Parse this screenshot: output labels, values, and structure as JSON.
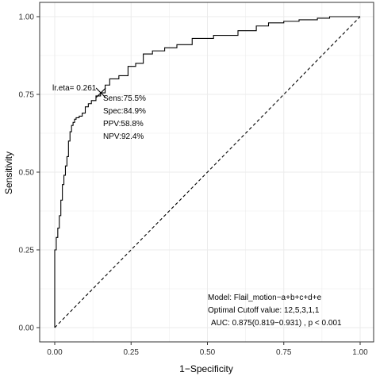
{
  "chart_data": {
    "type": "line",
    "xlabel": "1−Specificity",
    "ylabel": "Sensitivity",
    "xlim": [
      0,
      1
    ],
    "ylim": [
      0,
      1
    ],
    "x_ticks": [
      "0.00",
      "0.25",
      "0.50",
      "0.75",
      "1.00"
    ],
    "y_ticks": [
      "0.00",
      "0.25",
      "0.50",
      "0.75",
      "1.00"
    ],
    "grid": true,
    "series": [
      {
        "style": "solid",
        "x": [
          0,
          0,
          0.005,
          0.005,
          0.01,
          0.01,
          0.015,
          0.015,
          0.02,
          0.02,
          0.025,
          0.025,
          0.03,
          0.03,
          0.035,
          0.035,
          0.04,
          0.04,
          0.045,
          0.045,
          0.05,
          0.05,
          0.055,
          0.055,
          0.06,
          0.06,
          0.065,
          0.065,
          0.07,
          0.07,
          0.08,
          0.08,
          0.09,
          0.09,
          0.1,
          0.1,
          0.11,
          0.11,
          0.12,
          0.12,
          0.135,
          0.135,
          0.15,
          0.15,
          0.165,
          0.165,
          0.18,
          0.18,
          0.21,
          0.21,
          0.24,
          0.24,
          0.265,
          0.265,
          0.29,
          0.29,
          0.32,
          0.32,
          0.36,
          0.36,
          0.4,
          0.4,
          0.45,
          0.45,
          0.52,
          0.52,
          0.6,
          0.6,
          0.66,
          0.66,
          0.7,
          0.7,
          0.75,
          0.75,
          0.8,
          0.8,
          0.86,
          0.86,
          0.9,
          0.9,
          1.0
        ],
        "y": [
          0,
          0.25,
          0.25,
          0.29,
          0.29,
          0.32,
          0.32,
          0.36,
          0.36,
          0.41,
          0.41,
          0.46,
          0.46,
          0.49,
          0.49,
          0.52,
          0.52,
          0.55,
          0.55,
          0.6,
          0.6,
          0.63,
          0.63,
          0.65,
          0.65,
          0.66,
          0.66,
          0.67,
          0.67,
          0.675,
          0.675,
          0.68,
          0.68,
          0.69,
          0.69,
          0.71,
          0.71,
          0.72,
          0.72,
          0.73,
          0.73,
          0.745,
          0.745,
          0.755,
          0.755,
          0.78,
          0.78,
          0.8,
          0.8,
          0.81,
          0.81,
          0.84,
          0.84,
          0.85,
          0.85,
          0.88,
          0.88,
          0.89,
          0.89,
          0.9,
          0.9,
          0.91,
          0.91,
          0.93,
          0.93,
          0.94,
          0.94,
          0.955,
          0.955,
          0.97,
          0.97,
          0.98,
          0.98,
          0.985,
          0.985,
          0.99,
          0.99,
          0.995,
          0.995,
          1.0,
          1.0
        ]
      },
      {
        "style": "dashed",
        "x": [
          0,
          1
        ],
        "y": [
          0,
          1
        ]
      }
    ],
    "cutoff_point": {
      "x": 0.151,
      "y": 0.755,
      "label": "lr.eta= 0.261",
      "stats": [
        "Sens:75.5%",
        "Spec:84.9%",
        "PPV:58.8%",
        "NPV:92.4%"
      ]
    },
    "annotations": [
      "Model: Flail_motion~a+b+c+d+e",
      "Optimal Cutoff value:  12,5,3,1,1",
      "AUC:  0.875(0.819−0.931) , p < 0.001"
    ]
  },
  "colors": {
    "line": "#000000",
    "grid": "#ebebeb",
    "panel_border": "#333333"
  }
}
